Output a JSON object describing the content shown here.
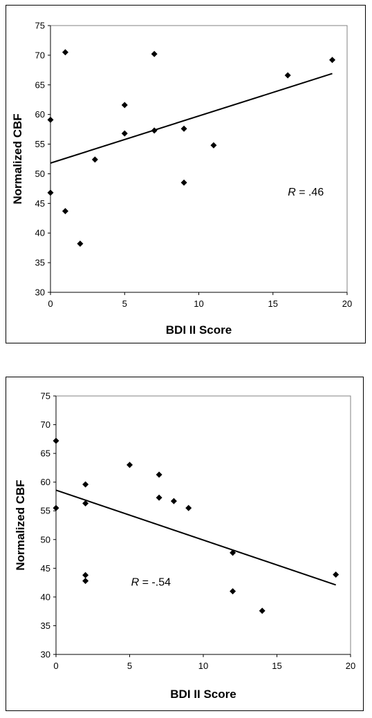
{
  "chart_data": [
    {
      "type": "scatter",
      "xlabel": "BDI II Score",
      "ylabel": "Normalized CBF",
      "xlim": [
        0,
        20
      ],
      "ylim": [
        30,
        75
      ],
      "xticks": [
        0,
        5,
        10,
        15,
        20
      ],
      "yticks": [
        30,
        35,
        40,
        45,
        50,
        55,
        60,
        65,
        70,
        75
      ],
      "points": [
        {
          "x": 0,
          "y": 59.1
        },
        {
          "x": 0,
          "y": 46.8
        },
        {
          "x": 1,
          "y": 70.5
        },
        {
          "x": 1,
          "y": 43.7
        },
        {
          "x": 2,
          "y": 38.2
        },
        {
          "x": 3,
          "y": 52.4
        },
        {
          "x": 5,
          "y": 61.6
        },
        {
          "x": 5,
          "y": 56.8
        },
        {
          "x": 7,
          "y": 70.2
        },
        {
          "x": 7,
          "y": 57.3
        },
        {
          "x": 9,
          "y": 57.6
        },
        {
          "x": 9,
          "y": 48.5
        },
        {
          "x": 11,
          "y": 54.8
        },
        {
          "x": 16,
          "y": 66.6
        },
        {
          "x": 19,
          "y": 69.2
        }
      ],
      "trendline": {
        "x": [
          0,
          19
        ],
        "y": [
          51.8,
          66.9
        ]
      },
      "annotation": {
        "r_symbol": "R",
        "r_value": " = .46",
        "x": 16.0,
        "y": 46.3
      },
      "grid": false,
      "legend": "none"
    },
    {
      "type": "scatter",
      "xlabel": "BDI II Score",
      "ylabel": "Normalized CBF",
      "xlim": [
        0,
        20
      ],
      "ylim": [
        30,
        75
      ],
      "xticks": [
        0,
        5,
        10,
        15,
        20
      ],
      "yticks": [
        30,
        35,
        40,
        45,
        50,
        55,
        60,
        65,
        70,
        75
      ],
      "points": [
        {
          "x": 0,
          "y": 67.2
        },
        {
          "x": 0,
          "y": 55.5
        },
        {
          "x": 2,
          "y": 59.6
        },
        {
          "x": 2,
          "y": 56.3
        },
        {
          "x": 2,
          "y": 43.8
        },
        {
          "x": 2,
          "y": 42.8
        },
        {
          "x": 5,
          "y": 63.0
        },
        {
          "x": 7,
          "y": 61.3
        },
        {
          "x": 7,
          "y": 57.3
        },
        {
          "x": 8,
          "y": 56.7
        },
        {
          "x": 9,
          "y": 55.5
        },
        {
          "x": 12,
          "y": 47.7
        },
        {
          "x": 12,
          "y": 41.0
        },
        {
          "x": 14,
          "y": 37.6
        },
        {
          "x": 19,
          "y": 43.9
        }
      ],
      "trendline": {
        "x": [
          0,
          19
        ],
        "y": [
          58.6,
          42.1
        ]
      },
      "annotation": {
        "r_symbol": "R",
        "r_value": " = -.54",
        "x": 5.1,
        "y": 42.0
      },
      "grid": false,
      "legend": "none"
    }
  ]
}
